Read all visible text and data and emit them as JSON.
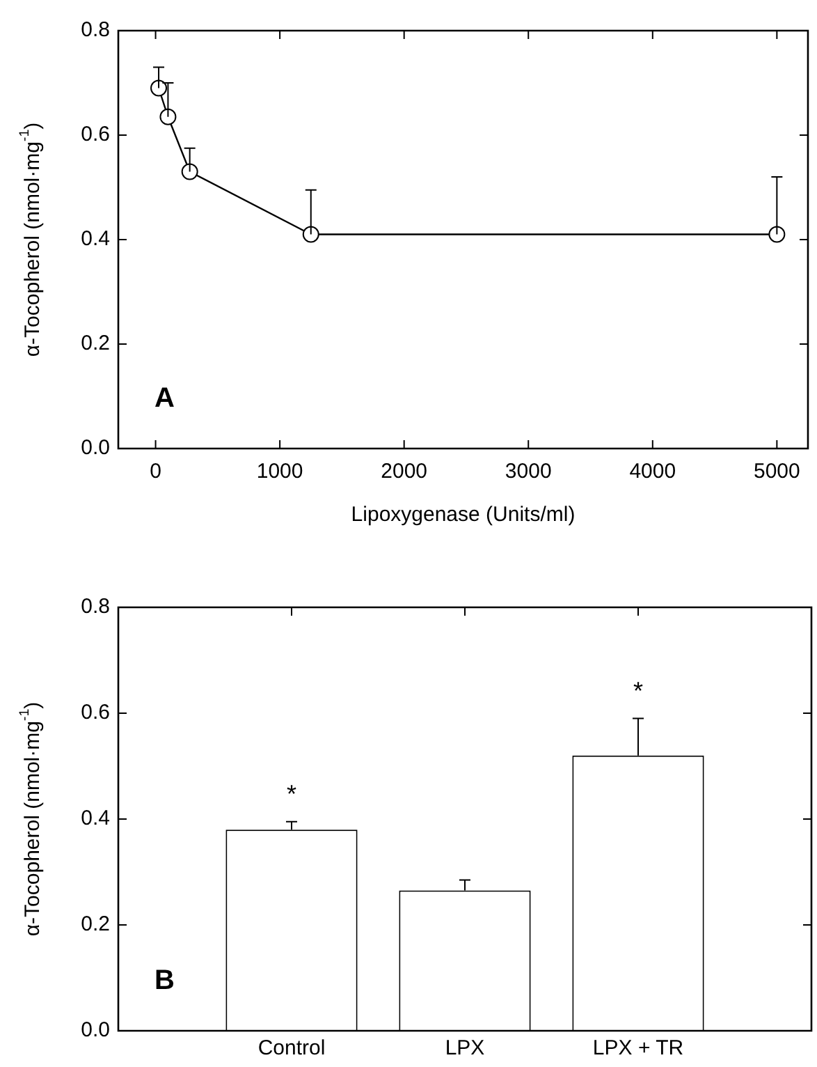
{
  "chart_data": [
    {
      "type": "line",
      "xlabel": "Lipoxygenase (Units/ml)",
      "ylabel": "α-Tocopherol (nmol·mg$^{-1}$)",
      "color": "#000000",
      "marker": "circle",
      "x": [
        25,
        100,
        275,
        1250,
        5000
      ],
      "values": [
        0.69,
        0.635,
        0.53,
        0.41,
        0.41
      ],
      "errors": [
        [
          0.69,
          0.73
        ],
        [
          0.635,
          0.7
        ],
        [
          0.53,
          0.575
        ],
        [
          0.41,
          0.495
        ],
        [
          0.41,
          0.52
        ]
      ],
      "xlim": [
        -300,
        5250
      ],
      "xticks": [
        0,
        1000,
        2000,
        3000,
        4000,
        5000
      ],
      "ylim": [
        0,
        0.8
      ],
      "yticks": [
        {
          "value": 0,
          "label": "0.0"
        },
        {
          "value": 0.2,
          "label": "0.2"
        },
        {
          "value": 0.4,
          "label": "0.4"
        },
        {
          "value": 0.6,
          "label": "0.6"
        },
        {
          "value": 0.8,
          "label": "0.8"
        }
      ],
      "annotations": [
        "A"
      ]
    },
    {
      "type": "bar",
      "ylabel": "α-Tocopherol (nmol·mg$^{-1}$)",
      "color": "#ffffff",
      "categories": [
        "Control",
        "LPX",
        "LPX + TR"
      ],
      "values": [
        0.38,
        0.265,
        0.52
      ],
      "errors": [
        [
          0.38,
          0.395
        ],
        [
          0.265,
          0.285
        ],
        [
          0.52,
          0.59
        ]
      ],
      "ylim": [
        0,
        0.8
      ],
      "yticks": [
        {
          "value": 0,
          "label": "0.0"
        },
        {
          "value": 0.2,
          "label": "0.2"
        },
        {
          "value": 0.4,
          "label": "0.4"
        },
        {
          "value": 0.6,
          "label": "0.6"
        },
        {
          "value": 0.8,
          "label": "0.8"
        }
      ],
      "value_labels": [
        "*",
        null,
        "*"
      ],
      "annotations": [
        "B"
      ]
    }
  ]
}
